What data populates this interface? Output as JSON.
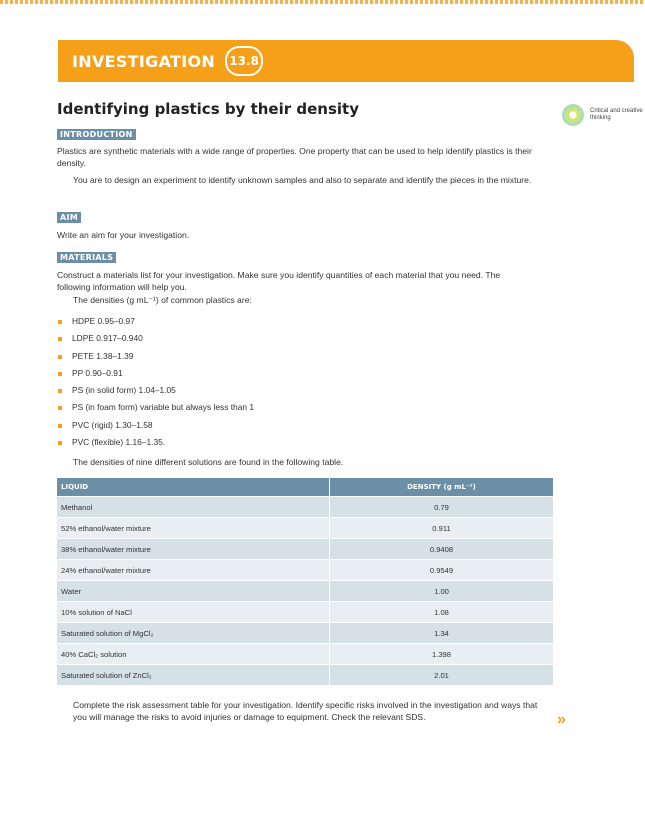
{
  "banner": {
    "label": "INVESTIGATION",
    "number": "13.8"
  },
  "title": "Identifying plastics by their density",
  "skill": {
    "label": "Critical and creative thinking"
  },
  "introduction": {
    "heading": "INTRODUCTION",
    "p1": "Plastics are synthetic materials with a wide range of properties. One property that can be used to help identify plastics is their density.",
    "p2": "You are to design an experiment to identify unknown samples and also to separate and identify the pieces in the mixture."
  },
  "aim": {
    "heading": "AIM",
    "text": "Write an aim for your investigation."
  },
  "materials": {
    "heading": "MATERIALS",
    "p1": "Construct a materials list for your investigation. Make sure you identify quantities of each material that you need. The following information will help you.",
    "p2": "The densities (g mL⁻¹) of common plastics are:",
    "plastics": [
      "HDPE 0.95–0.97",
      "LDPE 0.917–0.940",
      "PETE 1.38–1.39",
      "PP 0.90–0.91",
      "PS (in solid form) 1.04–1.05",
      "PS (in foam form) variable but always less than 1",
      "PVC (rigid) 1.30–1.58",
      "PVC (flexible) 1.16–1.35."
    ],
    "p3": "The densities of nine different solutions are found in the following table."
  },
  "table": {
    "col1": "LIQUID",
    "col2": "DENSITY (g mL⁻¹)",
    "rows": [
      {
        "liquid": "Methanol",
        "density": "0.79"
      },
      {
        "liquid": "52% ethanol/water mixture",
        "density": "0.911"
      },
      {
        "liquid": "38% ethanol/water mixture",
        "density": "0.9408"
      },
      {
        "liquid": "24% ethanol/water mixture",
        "density": "0.9549"
      },
      {
        "liquid": "Water",
        "density": "1.00"
      },
      {
        "liquid": "10% solution of NaCl",
        "density": "1.08"
      },
      {
        "liquid": "Saturated solution of MgCl₂",
        "density": "1.34"
      },
      {
        "liquid": "40% CaCl₂ solution",
        "density": "1.398"
      },
      {
        "liquid": "Saturated solution of ZnCl₂",
        "density": "2.01"
      }
    ]
  },
  "closing": "Complete the risk assessment table for your investigation. Identify specific risks involved in the investigation and ways that you will manage the risks to avoid injuries or damage to equipment. Check the relevant SDS.",
  "next_icon": "double-chevron-right-icon",
  "colors": {
    "accent": "#f6a01a",
    "heading_bg": "#6b8fa6"
  }
}
